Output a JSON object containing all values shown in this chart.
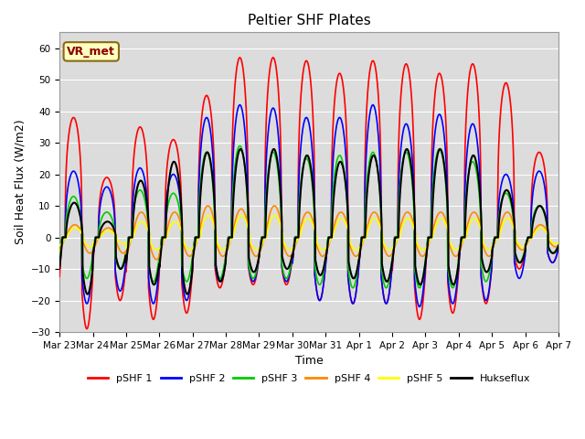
{
  "title": "Peltier SHF Plates",
  "xlabel": "Time",
  "ylabel": "Soil Heat Flux (W/m2)",
  "ylim": [
    -30,
    65
  ],
  "yticks": [
    -30,
    -20,
    -10,
    0,
    10,
    20,
    30,
    40,
    50,
    60
  ],
  "x_labels": [
    "Mar 23",
    "Mar 24",
    "Mar 25",
    "Mar 26",
    "Mar 27",
    "Mar 28",
    "Mar 29",
    "Mar 30",
    "Mar 31",
    "Apr 1",
    "Apr 2",
    "Apr 3",
    "Apr 4",
    "Apr 5",
    "Apr 6",
    "Apr 7"
  ],
  "annotation_text": "VR_met",
  "colors": {
    "pSHF1": "#ff0000",
    "pSHF2": "#0000ff",
    "pSHF3": "#00cc00",
    "pSHF4": "#ff8800",
    "pSHF5": "#ffff00",
    "Hukseflux": "#000000"
  },
  "legend_labels": [
    "pSHF 1",
    "pSHF 2",
    "pSHF 3",
    "pSHF 4",
    "pSHF 5",
    "Hukseflux"
  ],
  "num_days": 15,
  "pts_per_day": 144
}
